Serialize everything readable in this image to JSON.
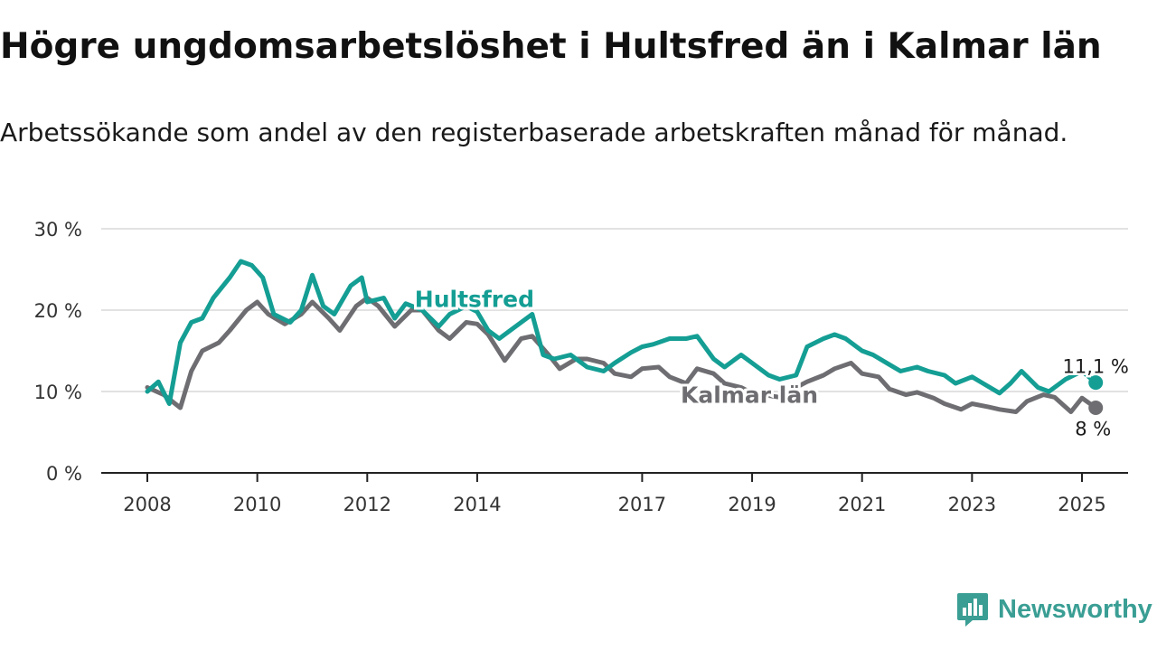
{
  "header": {
    "title": "Högre ungdomsarbetslöshet i Hultsfred än i Kalmar län",
    "subtitle": "Arbetssökande som andel av den registerbaserade arbetskraften månad för månad."
  },
  "brand": {
    "name": "Newsworthy",
    "color": "#3a9e94"
  },
  "chart_data": {
    "type": "line",
    "title": "Högre ungdomsarbetslöshet i Hultsfred än i Kalmar län",
    "subtitle": "Arbetssökande som andel av den registerbaserade arbetskraften månad för månad.",
    "xlabel": "",
    "ylabel": "",
    "x_range": [
      2007.85,
      2026.25
    ],
    "ylim": [
      0,
      30
    ],
    "x_ticks": [
      {
        "value": 2008,
        "label": "2008"
      },
      {
        "value": 2010,
        "label": "2010"
      },
      {
        "value": 2012,
        "label": "2012"
      },
      {
        "value": 2014,
        "label": "2014"
      },
      {
        "value": 2017,
        "label": "2017"
      },
      {
        "value": 2019,
        "label": "2019"
      },
      {
        "value": 2021,
        "label": "2021"
      },
      {
        "value": 2023,
        "label": "2023"
      },
      {
        "value": 2025,
        "label": "2025"
      }
    ],
    "y_ticks": [
      {
        "value": 0,
        "label": "0 %"
      },
      {
        "value": 10,
        "label": "10 %"
      },
      {
        "value": 20,
        "label": "20 %"
      },
      {
        "value": 30,
        "label": "30 %"
      }
    ],
    "grid": true,
    "series": [
      {
        "name": "Kalmar län",
        "color": "#6e6e72",
        "end_label": "8 %",
        "x": [
          2008.0,
          2008.3,
          2008.6,
          2008.8,
          2009.0,
          2009.3,
          2009.5,
          2009.8,
          2010.0,
          2010.2,
          2010.5,
          2010.8,
          2011.0,
          2011.3,
          2011.5,
          2011.8,
          2012.0,
          2012.2,
          2012.5,
          2012.8,
          2013.0,
          2013.3,
          2013.5,
          2013.8,
          2014.0,
          2014.2,
          2014.5,
          2014.8,
          2015.0,
          2015.3,
          2015.5,
          2015.8,
          2016.0,
          2016.3,
          2016.5,
          2016.8,
          2017.0,
          2017.3,
          2017.5,
          2017.8,
          2018.0,
          2018.3,
          2018.5,
          2018.8,
          2019.0,
          2019.3,
          2019.5,
          2019.8,
          2020.0,
          2020.3,
          2020.5,
          2020.8,
          2021.0,
          2021.3,
          2021.5,
          2021.8,
          2022.0,
          2022.3,
          2022.5,
          2022.8,
          2023.0,
          2023.3,
          2023.5,
          2023.8,
          2024.0,
          2024.3,
          2024.5,
          2024.8,
          2025.0,
          2025.25
        ],
        "values": [
          10.5,
          9.6,
          8.0,
          12.5,
          15.0,
          16.0,
          17.5,
          20.0,
          21.0,
          19.5,
          18.3,
          19.5,
          21.0,
          19.0,
          17.5,
          20.5,
          21.5,
          20.5,
          18.0,
          20.0,
          20.0,
          17.5,
          16.5,
          18.5,
          18.3,
          17.0,
          13.8,
          16.5,
          16.8,
          14.5,
          12.8,
          14.0,
          14.0,
          13.5,
          12.2,
          11.8,
          12.8,
          13.0,
          11.8,
          11.0,
          12.8,
          12.2,
          11.0,
          10.5,
          9.8,
          9.5,
          9.3,
          10.5,
          11.2,
          12.0,
          12.8,
          13.5,
          12.2,
          11.8,
          10.3,
          9.6,
          9.9,
          9.2,
          8.5,
          7.8,
          8.5,
          8.1,
          7.8,
          7.5,
          8.8,
          9.6,
          9.3,
          7.5,
          9.2,
          8.0
        ]
      },
      {
        "name": "Hultsfred",
        "color": "#149e94",
        "end_label": "11,1 %",
        "x": [
          2008.0,
          2008.2,
          2008.4,
          2008.6,
          2008.8,
          2009.0,
          2009.2,
          2009.5,
          2009.7,
          2009.9,
          2010.1,
          2010.3,
          2010.6,
          2010.8,
          2011.0,
          2011.2,
          2011.4,
          2011.7,
          2011.9,
          2012.0,
          2012.3,
          2012.5,
          2012.7,
          2013.0,
          2013.3,
          2013.5,
          2013.8,
          2014.0,
          2014.2,
          2014.4,
          2014.7,
          2015.0,
          2015.2,
          2015.4,
          2015.7,
          2016.0,
          2016.3,
          2016.5,
          2016.8,
          2017.0,
          2017.2,
          2017.5,
          2017.8,
          2018.0,
          2018.3,
          2018.5,
          2018.8,
          2019.0,
          2019.3,
          2019.5,
          2019.8,
          2020.0,
          2020.3,
          2020.5,
          2020.7,
          2021.0,
          2021.2,
          2021.5,
          2021.7,
          2022.0,
          2022.2,
          2022.5,
          2022.7,
          2023.0,
          2023.2,
          2023.5,
          2023.7,
          2023.9,
          2024.2,
          2024.4,
          2024.7,
          2025.0,
          2025.25
        ],
        "values": [
          10.0,
          11.2,
          8.5,
          16.0,
          18.5,
          19.0,
          21.5,
          24.0,
          26.0,
          25.5,
          24.0,
          19.5,
          18.5,
          20.0,
          24.3,
          20.5,
          19.5,
          23.0,
          24.0,
          21.0,
          21.5,
          19.0,
          20.8,
          20.0,
          18.0,
          19.5,
          20.5,
          19.8,
          17.5,
          16.5,
          18.0,
          19.5,
          14.5,
          14.0,
          14.5,
          13.0,
          12.5,
          13.5,
          14.8,
          15.5,
          15.8,
          16.5,
          16.5,
          16.8,
          14.0,
          13.0,
          14.5,
          13.5,
          12.0,
          11.5,
          12.0,
          15.5,
          16.5,
          17.0,
          16.5,
          15.0,
          14.5,
          13.3,
          12.5,
          13.0,
          12.5,
          12.0,
          11.0,
          11.8,
          11.0,
          9.8,
          11.0,
          12.5,
          10.5,
          10.0,
          11.5,
          12.5,
          11.1
        ]
      }
    ]
  }
}
